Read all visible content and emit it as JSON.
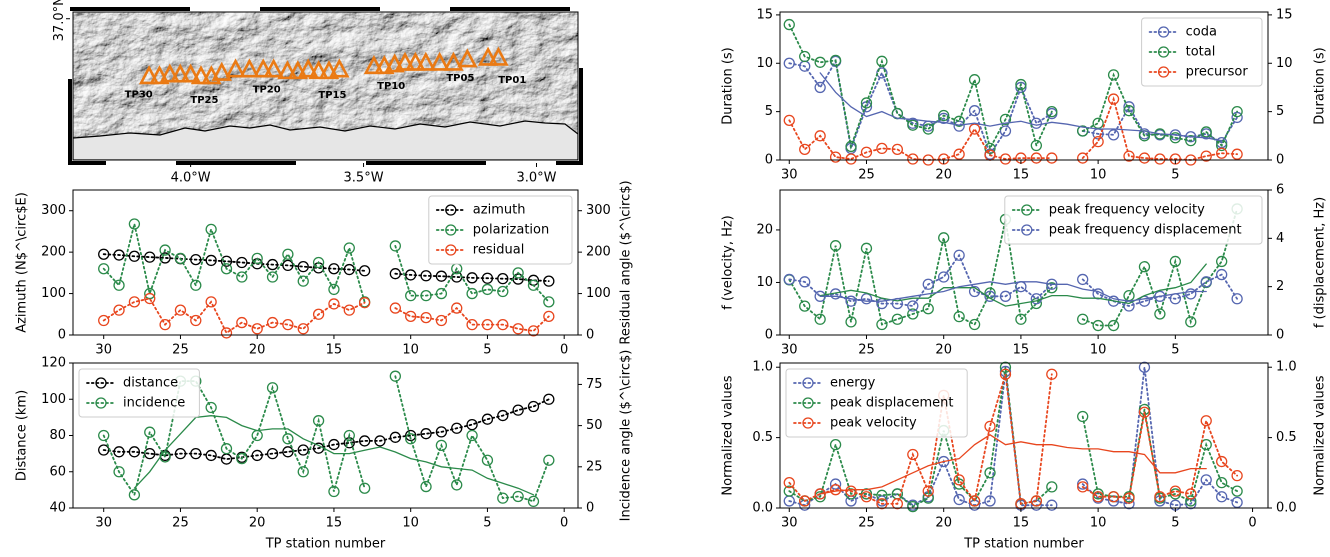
{
  "chart_data": [
    {
      "type": "map",
      "xlim": [
        -4.34,
        -2.88
      ],
      "ylim": [
        36.58,
        37.02
      ],
      "xticks": [
        {
          "value": -4.0,
          "label": "4.0°W"
        },
        {
          "value": -3.5,
          "label": "3.5°W"
        },
        {
          "value": -3.0,
          "label": "3.0°W"
        }
      ],
      "yticks": [
        {
          "value": 37.0,
          "label": "37.0°N"
        }
      ],
      "marker_color": "#ea7a14",
      "stations": {
        "lon": [
          -4.12,
          -4.09,
          -4.06,
          -4.03,
          -4.0,
          -3.97,
          -3.94,
          -3.91,
          -3.87,
          -3.83,
          -3.79,
          -3.76,
          -3.72,
          -3.69,
          -3.66,
          -3.63,
          -3.6,
          -3.57,
          null,
          -3.47,
          -3.44,
          -3.41,
          -3.38,
          -3.35,
          -3.32,
          -3.28,
          -3.24,
          -3.2,
          -3.14,
          -3.11
        ],
        "lat": [
          36.83,
          36.83,
          36.835,
          36.835,
          36.835,
          36.83,
          36.83,
          36.84,
          36.85,
          36.85,
          36.85,
          36.85,
          36.845,
          36.845,
          36.85,
          36.845,
          36.845,
          36.85,
          null,
          36.86,
          36.86,
          36.865,
          36.87,
          36.87,
          36.87,
          36.87,
          36.87,
          36.88,
          36.885,
          36.885
        ]
      },
      "labels": [
        {
          "text": "TP30",
          "lon": -4.15,
          "lat": 36.775
        },
        {
          "text": "TP25",
          "lon": -3.96,
          "lat": 36.758
        },
        {
          "text": "TP20",
          "lon": -3.78,
          "lat": 36.79
        },
        {
          "text": "TP15",
          "lon": -3.59,
          "lat": 36.773
        },
        {
          "text": "TP10",
          "lon": -3.42,
          "lat": 36.8
        },
        {
          "text": "TP05",
          "lon": -3.22,
          "lat": 36.824
        },
        {
          "text": "TP01",
          "lon": -3.07,
          "lat": 36.818
        }
      ]
    },
    {
      "type": "line",
      "ylabel": "Azimuth (N$^\\circ$E)",
      "y2label": "Residual angle ($^\\circ$)",
      "xlim": [
        32,
        -0.9
      ],
      "xticks": [
        30,
        25,
        20,
        15,
        10,
        5,
        0
      ],
      "ylim": [
        0,
        350
      ],
      "yticks": [
        0,
        100,
        200,
        300
      ],
      "y2lim": [
        0,
        350
      ],
      "y2ticks": [
        0,
        100,
        200,
        300
      ],
      "legend": "upper right",
      "x": [
        30,
        29,
        28,
        27,
        26,
        25,
        24,
        23,
        22,
        21,
        20,
        19,
        18,
        17,
        16,
        15,
        14,
        13,
        12,
        11,
        10,
        9,
        8,
        7,
        6,
        5,
        4,
        3,
        2,
        1
      ],
      "series": [
        {
          "name": "azimuth",
          "color": "#000000",
          "style": "dotted-markers",
          "values": [
            195,
            193,
            190,
            188,
            186,
            184,
            182,
            180,
            178,
            175,
            172,
            170,
            168,
            165,
            162,
            160,
            158,
            155,
            null,
            148,
            145,
            143,
            142,
            140,
            138,
            137,
            136,
            135,
            132,
            130
          ]
        },
        {
          "name": "polarization",
          "color": "#2b8a4a",
          "style": "dotted-markers",
          "values": [
            160,
            120,
            268,
            100,
            205,
            185,
            120,
            255,
            160,
            140,
            185,
            140,
            195,
            130,
            175,
            110,
            210,
            80,
            null,
            215,
            95,
            95,
            100,
            160,
            100,
            110,
            105,
            150,
            120,
            80
          ]
        },
        {
          "name": "residual",
          "color": "#e8461e",
          "style": "dotted-markers",
          "axis": "y2",
          "values": [
            35,
            60,
            80,
            88,
            25,
            60,
            35,
            80,
            5,
            30,
            15,
            30,
            25,
            15,
            50,
            75,
            60,
            78,
            null,
            65,
            45,
            42,
            35,
            65,
            25,
            25,
            25,
            15,
            10,
            45
          ]
        }
      ]
    },
    {
      "type": "line",
      "ylabel": "Distance (km)",
      "y2label": "Incidence angle ($^\\circ$)",
      "xlabel": "TP station number",
      "xlim": [
        32,
        -0.9
      ],
      "xticks": [
        30,
        25,
        20,
        15,
        10,
        5,
        0
      ],
      "ylim": [
        40,
        120
      ],
      "yticks": [
        40,
        60,
        80,
        100,
        120
      ],
      "y2lim": [
        0,
        88
      ],
      "y2ticks": [
        0,
        25,
        50,
        75
      ],
      "legend": "upper left",
      "x": [
        30,
        29,
        28,
        27,
        26,
        25,
        24,
        23,
        22,
        21,
        20,
        19,
        18,
        17,
        16,
        15,
        14,
        13,
        12,
        11,
        10,
        9,
        8,
        7,
        6,
        5,
        4,
        3,
        2,
        1
      ],
      "series": [
        {
          "name": "distance",
          "color": "#000000",
          "style": "dotted-markers",
          "values": [
            72,
            71,
            71,
            70,
            69,
            70,
            70,
            69,
            67,
            68,
            69,
            70,
            71,
            72,
            73,
            75,
            76,
            77,
            77,
            79,
            80,
            81,
            82,
            84,
            86,
            89,
            91,
            94,
            96,
            100
          ]
        },
        {
          "name": "incidence",
          "color": "#2b8a4a",
          "style": "dotted-markers",
          "axis": "y2",
          "values": [
            44,
            22,
            8,
            46,
            31,
            77,
            77,
            61,
            36,
            30,
            44,
            73,
            42,
            22,
            53,
            10,
            44,
            12,
            null,
            80,
            42,
            13,
            38,
            14,
            44,
            29,
            6,
            7,
            4,
            29
          ]
        },
        {
          "color": "#2b8a4a",
          "style": "line",
          "axis": "y2",
          "values": [
            null,
            null,
            12,
            22,
            35,
            45,
            55,
            56,
            55,
            50,
            47,
            48,
            48,
            42,
            38,
            33,
            33,
            35,
            37,
            34,
            30,
            28,
            25,
            24,
            23,
            18,
            15,
            12,
            8,
            null
          ]
        }
      ]
    },
    {
      "type": "line",
      "ylabel": "Duration (s)",
      "y2label": "Duration (s)",
      "xlim": [
        30.6,
        -1
      ],
      "xticks": [
        30,
        25,
        20,
        15,
        10,
        5
      ],
      "ylim": [
        0,
        15.3
      ],
      "yticks": [
        0,
        5,
        10,
        15
      ],
      "y2lim": [
        0,
        15.3
      ],
      "y2ticks": [
        0,
        5,
        10,
        15
      ],
      "legend": "upper right",
      "x": [
        30,
        29,
        28,
        27,
        26,
        25,
        24,
        23,
        22,
        21,
        20,
        19,
        18,
        17,
        16,
        15,
        14,
        13,
        12,
        11,
        10,
        9,
        8,
        7,
        6,
        5,
        4,
        3,
        2,
        1
      ],
      "series": [
        {
          "name": "coda",
          "color": "#5566b0",
          "style": "dotted-markers",
          "values": [
            10,
            9.7,
            7.5,
            10.2,
            1.2,
            5.5,
            9,
            4.8,
            3.8,
            3.5,
            4.3,
            3.5,
            5.1,
            0.6,
            3,
            7.5,
            3.8,
            4.8,
            null,
            3,
            2.7,
            2.6,
            5.5,
            2.7,
            2.6,
            2.6,
            2.4,
            2.7,
            1.8,
            4.4
          ]
        },
        {
          "name": "total",
          "color": "#2b8a4a",
          "style": "dotted-markers",
          "values": [
            14,
            10.7,
            10.1,
            10.3,
            1.4,
            5.9,
            10.2,
            4.8,
            3.6,
            3.2,
            4.6,
            4,
            8.3,
            1.2,
            4.2,
            7.8,
            1.5,
            5,
            null,
            3,
            3.8,
            8.8,
            5.1,
            2.5,
            2.7,
            2.3,
            2,
            2.9,
            1.5,
            5
          ]
        },
        {
          "name": "precursor",
          "color": "#e8461e",
          "style": "dotted-markers",
          "values": [
            4.1,
            1.1,
            2.5,
            0.3,
            0.1,
            0.8,
            1.2,
            1.1,
            0.1,
            0,
            0.1,
            0.6,
            3.2,
            0.5,
            0.1,
            0.2,
            0.2,
            0.2,
            null,
            0.2,
            1.9,
            6.3,
            0.4,
            0.2,
            0.1,
            0.1,
            0,
            0.4,
            0.7,
            0.6
          ]
        },
        {
          "color": "#5566b0",
          "style": "line",
          "values": [
            null,
            null,
            9,
            7,
            5.5,
            4.5,
            5,
            4.3,
            4.2,
            4,
            3.9,
            3.6,
            3.8,
            3.5,
            3.8,
            4,
            3.6,
            3.9,
            3.7,
            3.4,
            3.2,
            3.2,
            3.1,
            3,
            2.7,
            2.6,
            2.4,
            2.3,
            2,
            null
          ]
        }
      ]
    },
    {
      "type": "line",
      "ylabel": "f (velocity, Hz)",
      "y2label": "f (displacement, Hz)",
      "xlim": [
        30.6,
        -1
      ],
      "xticks": [
        30,
        25,
        20,
        15,
        10,
        5
      ],
      "ylim": [
        0,
        27.6
      ],
      "yticks": [
        0,
        10,
        20
      ],
      "y2lim": [
        0,
        6
      ],
      "y2ticks": [
        0,
        2,
        4,
        6
      ],
      "legend": "upper right",
      "x": [
        30,
        29,
        28,
        27,
        26,
        25,
        24,
        23,
        22,
        21,
        20,
        19,
        18,
        17,
        16,
        15,
        14,
        13,
        12,
        11,
        10,
        9,
        8,
        7,
        6,
        5,
        4,
        3,
        2,
        1
      ],
      "series": [
        {
          "name": "peak frequency velocity",
          "color": "#2b8a4a",
          "style": "dotted-markers",
          "values": [
            10.5,
            5.5,
            3,
            17,
            2.5,
            16.5,
            2,
            3,
            4,
            5,
            18.5,
            3.5,
            2,
            8,
            22,
            3,
            6,
            9,
            null,
            3,
            1.8,
            1.8,
            7.5,
            13,
            4,
            14,
            2.5,
            10,
            14,
            24
          ]
        },
        {
          "name": "peak frequency displacement",
          "color": "#5566b0",
          "style": "dotted-markers",
          "axis": "y2",
          "values": [
            2.3,
            2.2,
            1.6,
            1.7,
            1.4,
            1.5,
            1.3,
            1.3,
            1.2,
            2.1,
            2.4,
            3.3,
            1.8,
            1.6,
            1.6,
            2.0,
            1.5,
            2.1,
            null,
            2.3,
            1.7,
            1.4,
            1.2,
            1.4,
            1.6,
            1.5,
            1.7,
            2.2,
            2.5,
            1.5
          ]
        },
        {
          "color": "#2b8a4a",
          "style": "line",
          "values": [
            null,
            null,
            7.5,
            8,
            8.5,
            8,
            7,
            6.5,
            7,
            7,
            9,
            9,
            9,
            7,
            5.5,
            6,
            6.5,
            7.5,
            7.5,
            7,
            7,
            6.5,
            6,
            7.5,
            8.5,
            9,
            10,
            13.5,
            null,
            null
          ]
        },
        {
          "color": "#5566b0",
          "style": "line",
          "axis": "y2",
          "values": [
            null,
            null,
            1.6,
            1.6,
            1.5,
            1.4,
            1.4,
            1.5,
            1.6,
            1.7,
            1.8,
            2.0,
            2.1,
            2.2,
            2.1,
            2.2,
            2.2,
            2.1,
            2.1,
            1.9,
            1.8,
            1.5,
            1.4,
            1.5,
            1.6,
            1.7,
            1.8,
            1.8,
            null,
            null
          ]
        }
      ]
    },
    {
      "type": "line",
      "ylabel": "Normalized values",
      "y2label": "Normalized values",
      "xlabel": "TP station number",
      "xlim": [
        30.6,
        -1
      ],
      "xticks": [
        30,
        25,
        20,
        15,
        10,
        5,
        0
      ],
      "ylim": [
        0,
        1.03
      ],
      "yticks": [
        {
          "value": 0,
          "label": "0.0"
        },
        {
          "value": 0.5,
          "label": "0.5"
        },
        {
          "value": 1,
          "label": "1.0"
        }
      ],
      "y2lim": [
        0,
        1.03
      ],
      "y2ticks": [
        {
          "value": 0,
          "label": "0.0"
        },
        {
          "value": 0.5,
          "label": "0.5"
        },
        {
          "value": 1,
          "label": "1.0"
        }
      ],
      "legend": "upper left",
      "x": [
        30,
        29,
        28,
        27,
        26,
        25,
        24,
        23,
        22,
        21,
        20,
        19,
        18,
        17,
        16,
        15,
        14,
        13,
        12,
        11,
        10,
        9,
        8,
        7,
        6,
        5,
        4,
        3,
        2,
        1
      ],
      "series": [
        {
          "name": "energy",
          "color": "#5566b0",
          "style": "dotted-markers",
          "values": [
            0.05,
            0.02,
            0.1,
            0.17,
            0.05,
            0.1,
            0.05,
            0.1,
            0.02,
            0.08,
            0.33,
            0.06,
            0.02,
            0.05,
            0.97,
            0.02,
            0.02,
            0.02,
            null,
            0.17,
            0.07,
            0.05,
            0.03,
            1.0,
            0.05,
            0.02,
            0.03,
            0.2,
            0.08,
            0.04
          ]
        },
        {
          "name": "peak displacement",
          "color": "#2b8a4a",
          "style": "dotted-markers",
          "values": [
            0.12,
            0.05,
            0.08,
            0.45,
            0.1,
            0.1,
            0.09,
            0.1,
            0.01,
            0.07,
            0.55,
            0.17,
            0.05,
            0.25,
            1.0,
            0.03,
            0.05,
            0.15,
            null,
            0.65,
            0.1,
            0.08,
            0.08,
            0.7,
            0.07,
            0.1,
            0.05,
            0.45,
            0.18,
            0.12
          ]
        },
        {
          "name": "peak velocity",
          "color": "#e8461e",
          "style": "dotted-markers",
          "values": [
            0.18,
            0.05,
            0.1,
            0.13,
            0.12,
            0.08,
            0.03,
            0.03,
            0.38,
            0.12,
            0.8,
            0.2,
            0.05,
            0.58,
            0.95,
            0.03,
            0.05,
            0.95,
            null,
            0.15,
            0.08,
            0.08,
            0.07,
            0.68,
            0.08,
            0.12,
            0.1,
            0.62,
            0.33,
            0.23
          ]
        },
        {
          "color": "#e8461e",
          "style": "line",
          "values": [
            null,
            null,
            0.1,
            0.12,
            0.13,
            0.13,
            0.15,
            0.2,
            0.25,
            0.3,
            0.33,
            0.35,
            0.45,
            0.52,
            0.45,
            0.47,
            0.45,
            0.45,
            0.43,
            0.42,
            0.42,
            0.4,
            0.4,
            0.38,
            0.25,
            0.25,
            0.28,
            0.28,
            null,
            null
          ]
        }
      ]
    }
  ]
}
